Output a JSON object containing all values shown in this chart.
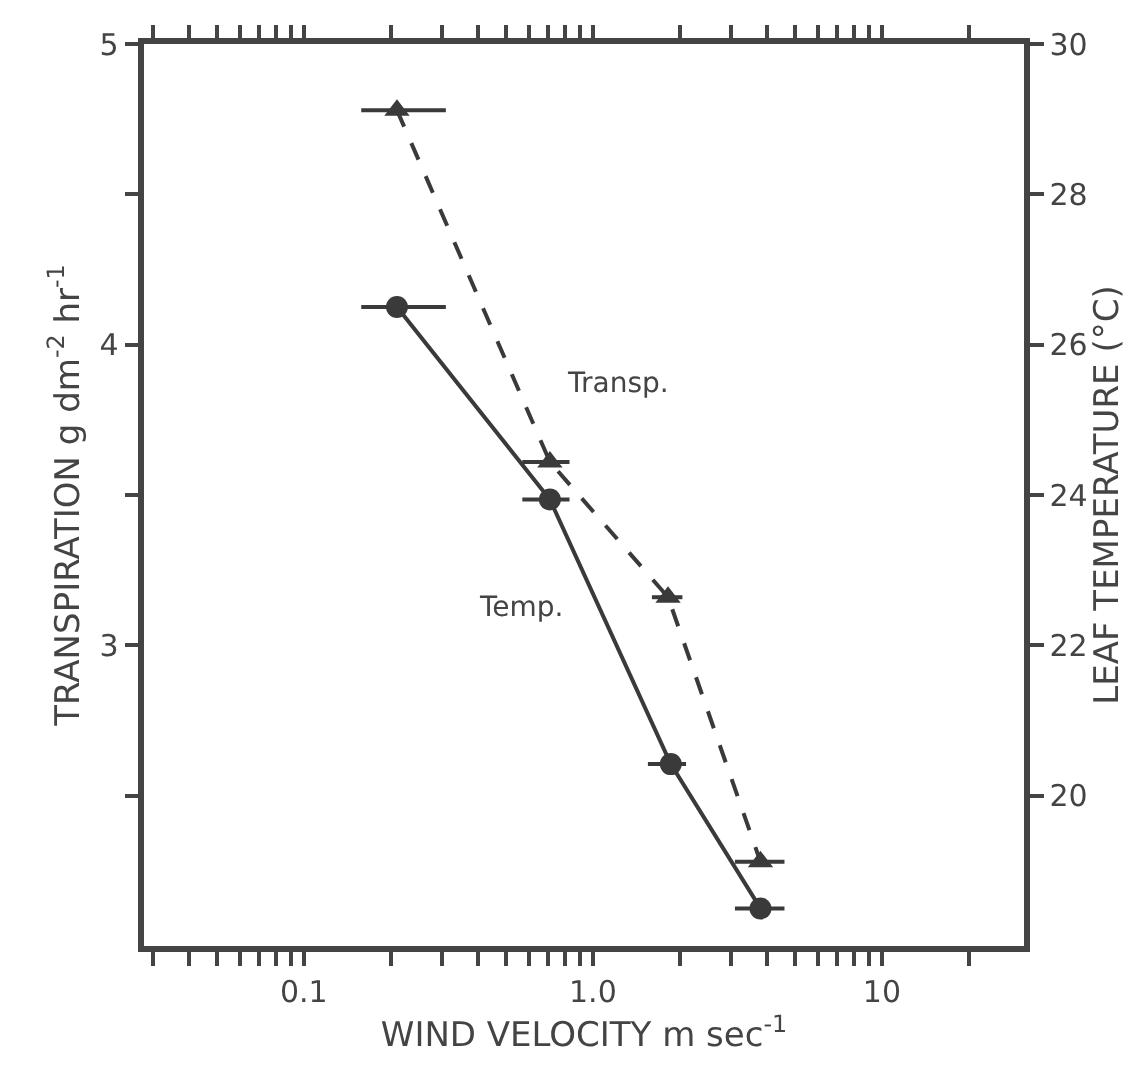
{
  "chart_data": {
    "type": "line",
    "xlabel": "WIND VELOCITY m sec$^{-1}$",
    "ylabel": "TRANSPIRATION g dm$^{-2}$ hr$^{-1}$",
    "y2label": "LEAF TEMPERATURE (°C)",
    "log": "x",
    "xlim": [
      0.028,
      31
    ],
    "xticks": [
      {
        "value": 0.03,
        "label": null
      },
      {
        "value": 0.04,
        "label": null
      },
      {
        "value": 0.05,
        "label": null
      },
      {
        "value": 0.06,
        "label": null
      },
      {
        "value": 0.07,
        "label": null
      },
      {
        "value": 0.08,
        "label": null
      },
      {
        "value": 0.09,
        "label": null
      },
      0.1,
      {
        "value": 0.2,
        "label": null
      },
      {
        "value": 0.3,
        "label": null
      },
      {
        "value": 0.4,
        "label": null
      },
      {
        "value": 0.5,
        "label": null
      },
      {
        "value": 0.6,
        "label": null
      },
      {
        "value": 0.7,
        "label": null
      },
      {
        "value": 0.8,
        "label": null
      },
      {
        "value": 0.9,
        "label": null
      },
      {
        "value": 1,
        "label": "1.0"
      },
      {
        "value": 2,
        "label": null
      },
      {
        "value": 3,
        "label": null
      },
      {
        "value": 4,
        "label": null
      },
      {
        "value": 5,
        "label": null
      },
      {
        "value": 6,
        "label": null
      },
      {
        "value": 7,
        "label": null
      },
      {
        "value": 8,
        "label": null
      },
      {
        "value": 9,
        "label": null
      },
      10,
      {
        "value": 20,
        "label": null
      }
    ],
    "ylim": [
      2.0,
      5
    ],
    "yticks": [
      {
        "value": 2.5,
        "label": null
      },
      3,
      {
        "value": 3.5,
        "label": null
      },
      4,
      {
        "value": 4.5,
        "label": null
      },
      5
    ],
    "y2lim": [
      18,
      30
    ],
    "y2ticks": [
      20,
      22,
      24,
      26,
      28,
      30
    ],
    "series": [
      {
        "name": "Transp.",
        "color": "#3a3a3a",
        "marker": "triangle",
        "line_style": "dashed",
        "x": [
          0.21,
          0.71,
          1.82,
          3.8
        ],
        "values": [
          4.78,
          3.61,
          3.16,
          2.28
        ],
        "xerrors": [
          [
            0.158,
            0.31
          ],
          [
            0.57,
            0.83
          ],
          [
            1.6,
            2.04
          ],
          [
            3.1,
            4.6
          ]
        ]
      },
      {
        "name": "Temp.",
        "axis": "y2",
        "color": "#3a3a3a",
        "marker": "circle",
        "line_style": "solid",
        "x": [
          0.21,
          0.71,
          1.86,
          3.8
        ],
        "values": [
          26.5,
          23.94,
          20.42,
          18.5
        ],
        "xerrors": [
          [
            0.158,
            0.31
          ],
          [
            0.57,
            0.83
          ],
          [
            1.55,
            2.1
          ],
          [
            3.1,
            4.6
          ]
        ]
      }
    ]
  }
}
